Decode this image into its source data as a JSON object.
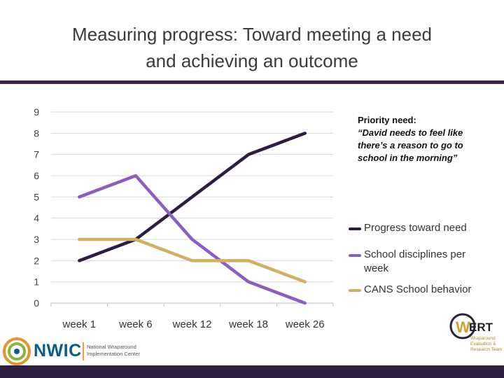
{
  "slide": {
    "title_line1": "Measuring progress: Toward meeting a need",
    "title_line2": "and achieving an outcome"
  },
  "note": {
    "label": "Priority need:",
    "quote": "“David needs to feel like there’s a reason to go to school in the morning”"
  },
  "logos": {
    "nwic_name": "NWIC",
    "nwic_subtitle": "National Wraparound Implementation Center",
    "wert_name": "ERT",
    "wert_subtitle": "Wraparound Evaluation & Research Team"
  },
  "colors": {
    "progress": "#2e1c44",
    "disciplines": "#8a5cc4",
    "cans": "#d1b060"
  },
  "chart_data": {
    "type": "line",
    "title": "",
    "xlabel": "",
    "ylabel": "",
    "categories": [
      "week 1",
      "week 6",
      "week 12",
      "week 18",
      "week 26"
    ],
    "ylim": [
      0,
      9
    ],
    "yticks": [
      "0",
      "1",
      "2",
      "3",
      "4",
      "5",
      "6",
      "7",
      "8",
      "9"
    ],
    "grid": true,
    "legend_position": "right",
    "series": [
      {
        "name": "Progress toward need",
        "values": [
          2,
          3,
          5,
          7,
          8
        ]
      },
      {
        "name": "School disciplines per week",
        "values": [
          5,
          6,
          3,
          1,
          0
        ]
      },
      {
        "name": "CANS School behavior",
        "values": [
          3,
          3,
          2,
          2,
          1
        ]
      }
    ]
  }
}
